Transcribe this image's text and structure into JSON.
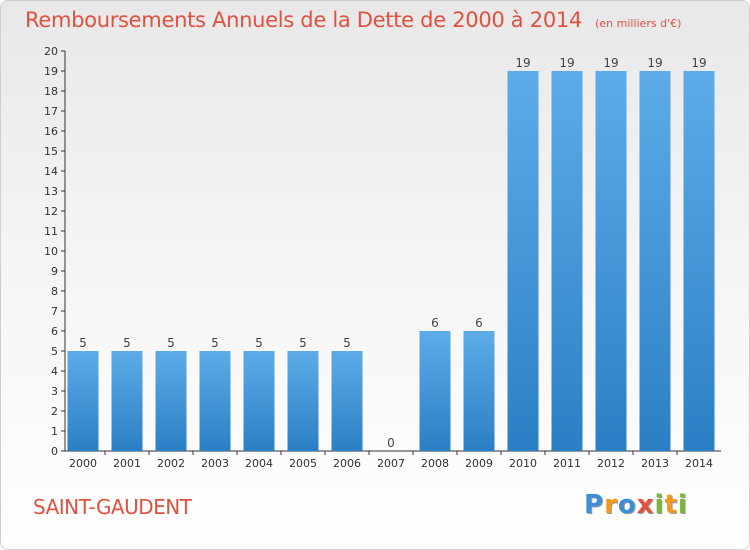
{
  "chart_data": {
    "type": "bar",
    "title": "Remboursements Annuels de la Dette de 2000 à 2014",
    "subtitle": "(en milliers d'€)",
    "categories": [
      "2000",
      "2001",
      "2002",
      "2003",
      "2004",
      "2005",
      "2006",
      "2007",
      "2008",
      "2009",
      "2010",
      "2011",
      "2012",
      "2013",
      "2014"
    ],
    "values": [
      5,
      5,
      5,
      5,
      5,
      5,
      5,
      0,
      6,
      6,
      19,
      19,
      19,
      19,
      19
    ],
    "ylim": [
      0,
      20
    ],
    "yticks": [
      0,
      1,
      2,
      3,
      4,
      5,
      6,
      7,
      8,
      9,
      10,
      11,
      12,
      13,
      14,
      15,
      16,
      17,
      18,
      19,
      20
    ],
    "grid": false,
    "bar_color": "#3c96dc"
  },
  "footer": {
    "place": "SAINT-GAUDENT",
    "logo_letters": [
      {
        "ch": "P",
        "color": "#3c8ed6"
      },
      {
        "ch": "r",
        "color": "#f29a1f"
      },
      {
        "ch": "o",
        "color": "#3c8ed6"
      },
      {
        "ch": "x",
        "color": "#e0513f"
      },
      {
        "ch": "i",
        "color": "#7ab63a"
      },
      {
        "ch": "t",
        "color": "#f29a1f"
      },
      {
        "ch": "i",
        "color": "#7ab63a"
      }
    ]
  },
  "colors": {
    "title": "#e0513f",
    "axis": "#333333"
  }
}
